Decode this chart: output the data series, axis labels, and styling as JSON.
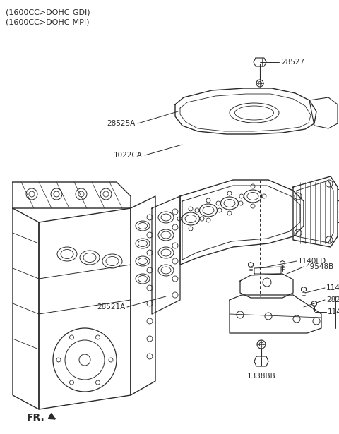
{
  "title_line1": "(1600CC>DOHC-GDI)",
  "title_line2": "(1600CC>DOHC-MPI)",
  "fr_label": "FR.",
  "bg": "#ffffff",
  "lc": "#2a2a2a",
  "tc": "#2a2a2a",
  "fig_width": 4.8,
  "fig_height": 6.15,
  "dpi": 100,
  "xlim": [
    0,
    480
  ],
  "ylim": [
    0,
    615
  ]
}
